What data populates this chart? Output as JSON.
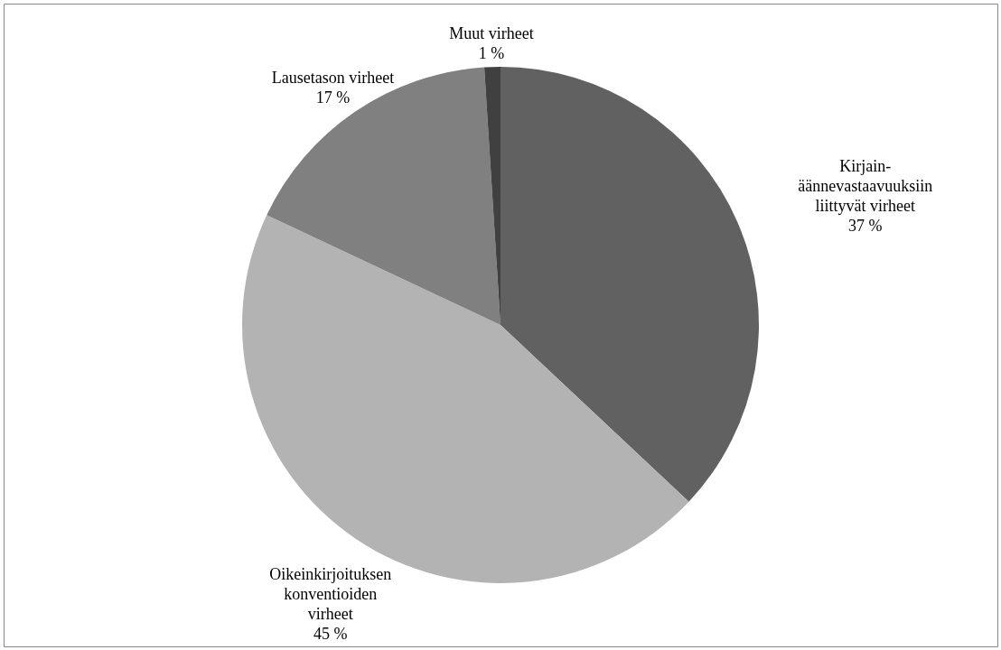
{
  "chart_data": {
    "type": "pie",
    "categories": [
      "Kirjain-äännevastaavuuksiin liittyvät virheet",
      "Oikeinkirjoituksen konventioiden virheet",
      "Lausetason virheet",
      "Muut virheet"
    ],
    "values": [
      37,
      45,
      17,
      1
    ],
    "value_labels": [
      "37 %",
      "45 %",
      "17 %",
      "1 %"
    ],
    "colors": [
      "#616161",
      "#b3b3b3",
      "#808080",
      "#404040"
    ]
  }
}
